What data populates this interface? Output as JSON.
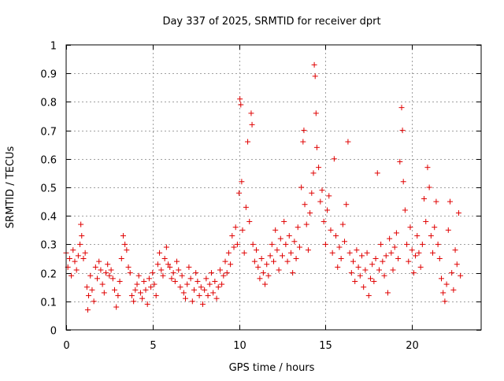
{
  "chart_data": {
    "type": "scatter",
    "title": "Day 337 of 2025, SRMTID for receiver dprt",
    "xlabel": "GPS time / hours",
    "ylabel": "SRMTID / TECUs",
    "xlim": [
      0,
      24
    ],
    "ylim": [
      0,
      1
    ],
    "xticks": [
      0,
      5,
      10,
      15,
      20
    ],
    "xtick_labels": [
      "0",
      "5",
      "10",
      "15",
      "20"
    ],
    "yticks": [
      0,
      0.1,
      0.2,
      0.3,
      0.4,
      0.5,
      0.6,
      0.7,
      0.8,
      0.9,
      1
    ],
    "ytick_labels": [
      "0",
      "0.1",
      "0.2",
      "0.3",
      "0.4",
      "0.5",
      "0.6",
      "0.7",
      "0.8",
      "0.9",
      "1"
    ],
    "grid": true,
    "marker": "+",
    "color": "#e00000",
    "series": [
      {
        "name": "SRMTID",
        "points": [
          [
            0.0,
            0.27
          ],
          [
            0.1,
            0.22
          ],
          [
            0.2,
            0.25
          ],
          [
            0.3,
            0.19
          ],
          [
            0.4,
            0.28
          ],
          [
            0.5,
            0.24
          ],
          [
            0.6,
            0.21
          ],
          [
            0.7,
            0.26
          ],
          [
            0.8,
            0.3
          ],
          [
            0.85,
            0.37
          ],
          [
            0.9,
            0.33
          ],
          [
            1.0,
            0.25
          ],
          [
            1.1,
            0.27
          ],
          [
            1.2,
            0.15
          ],
          [
            1.25,
            0.07
          ],
          [
            1.3,
            0.12
          ],
          [
            1.4,
            0.19
          ],
          [
            1.5,
            0.14
          ],
          [
            1.6,
            0.1
          ],
          [
            1.7,
            0.22
          ],
          [
            1.8,
            0.18
          ],
          [
            1.9,
            0.24
          ],
          [
            2.0,
            0.21
          ],
          [
            2.1,
            0.16
          ],
          [
            2.2,
            0.13
          ],
          [
            2.3,
            0.2
          ],
          [
            2.4,
            0.23
          ],
          [
            2.5,
            0.19
          ],
          [
            2.6,
            0.21
          ],
          [
            2.7,
            0.18
          ],
          [
            2.8,
            0.14
          ],
          [
            2.9,
            0.08
          ],
          [
            3.0,
            0.12
          ],
          [
            3.1,
            0.17
          ],
          [
            3.2,
            0.25
          ],
          [
            3.3,
            0.33
          ],
          [
            3.4,
            0.3
          ],
          [
            3.5,
            0.28
          ],
          [
            3.6,
            0.22
          ],
          [
            3.7,
            0.2
          ],
          [
            3.8,
            0.12
          ],
          [
            3.9,
            0.1
          ],
          [
            4.0,
            0.14
          ],
          [
            4.1,
            0.16
          ],
          [
            4.2,
            0.19
          ],
          [
            4.3,
            0.13
          ],
          [
            4.4,
            0.11
          ],
          [
            4.5,
            0.17
          ],
          [
            4.6,
            0.14
          ],
          [
            4.7,
            0.09
          ],
          [
            4.8,
            0.18
          ],
          [
            4.9,
            0.15
          ],
          [
            5.0,
            0.2
          ],
          [
            5.1,
            0.16
          ],
          [
            5.2,
            0.12
          ],
          [
            5.3,
            0.23
          ],
          [
            5.4,
            0.27
          ],
          [
            5.5,
            0.21
          ],
          [
            5.6,
            0.19
          ],
          [
            5.7,
            0.25
          ],
          [
            5.8,
            0.29
          ],
          [
            5.9,
            0.23
          ],
          [
            6.0,
            0.22
          ],
          [
            6.1,
            0.18
          ],
          [
            6.2,
            0.2
          ],
          [
            6.3,
            0.17
          ],
          [
            6.4,
            0.24
          ],
          [
            6.5,
            0.21
          ],
          [
            6.6,
            0.15
          ],
          [
            6.7,
            0.19
          ],
          [
            6.8,
            0.13
          ],
          [
            6.9,
            0.11
          ],
          [
            7.0,
            0.16
          ],
          [
            7.1,
            0.22
          ],
          [
            7.2,
            0.18
          ],
          [
            7.3,
            0.1
          ],
          [
            7.4,
            0.14
          ],
          [
            7.5,
            0.2
          ],
          [
            7.6,
            0.17
          ],
          [
            7.7,
            0.12
          ],
          [
            7.8,
            0.15
          ],
          [
            7.9,
            0.09
          ],
          [
            8.0,
            0.14
          ],
          [
            8.1,
            0.18
          ],
          [
            8.2,
            0.12
          ],
          [
            8.3,
            0.16
          ],
          [
            8.4,
            0.2
          ],
          [
            8.5,
            0.13
          ],
          [
            8.6,
            0.17
          ],
          [
            8.7,
            0.11
          ],
          [
            8.8,
            0.15
          ],
          [
            8.9,
            0.21
          ],
          [
            9.0,
            0.16
          ],
          [
            9.1,
            0.19
          ],
          [
            9.2,
            0.24
          ],
          [
            9.3,
            0.2
          ],
          [
            9.4,
            0.27
          ],
          [
            9.5,
            0.23
          ],
          [
            9.6,
            0.33
          ],
          [
            9.7,
            0.29
          ],
          [
            9.8,
            0.36
          ],
          [
            9.9,
            0.3
          ],
          [
            10.0,
            0.48
          ],
          [
            10.05,
            0.81
          ],
          [
            10.1,
            0.79
          ],
          [
            10.15,
            0.52
          ],
          [
            10.2,
            0.35
          ],
          [
            10.3,
            0.27
          ],
          [
            10.4,
            0.43
          ],
          [
            10.5,
            0.66
          ],
          [
            10.6,
            0.38
          ],
          [
            10.7,
            0.76
          ],
          [
            10.75,
            0.72
          ],
          [
            10.8,
            0.3
          ],
          [
            10.9,
            0.24
          ],
          [
            11.0,
            0.28
          ],
          [
            11.1,
            0.22
          ],
          [
            11.2,
            0.18
          ],
          [
            11.3,
            0.25
          ],
          [
            11.4,
            0.2
          ],
          [
            11.5,
            0.16
          ],
          [
            11.6,
            0.23
          ],
          [
            11.7,
            0.19
          ],
          [
            11.8,
            0.26
          ],
          [
            11.9,
            0.3
          ],
          [
            12.0,
            0.24
          ],
          [
            12.1,
            0.35
          ],
          [
            12.2,
            0.28
          ],
          [
            12.3,
            0.21
          ],
          [
            12.4,
            0.32
          ],
          [
            12.5,
            0.26
          ],
          [
            12.6,
            0.38
          ],
          [
            12.7,
            0.3
          ],
          [
            12.8,
            0.24
          ],
          [
            12.9,
            0.33
          ],
          [
            13.0,
            0.27
          ],
          [
            13.1,
            0.2
          ],
          [
            13.2,
            0.31
          ],
          [
            13.3,
            0.25
          ],
          [
            13.4,
            0.36
          ],
          [
            13.5,
            0.29
          ],
          [
            13.6,
            0.5
          ],
          [
            13.7,
            0.66
          ],
          [
            13.75,
            0.7
          ],
          [
            13.8,
            0.44
          ],
          [
            13.9,
            0.37
          ],
          [
            14.0,
            0.28
          ],
          [
            14.1,
            0.41
          ],
          [
            14.2,
            0.48
          ],
          [
            14.3,
            0.55
          ],
          [
            14.35,
            0.93
          ],
          [
            14.4,
            0.89
          ],
          [
            14.45,
            0.76
          ],
          [
            14.5,
            0.64
          ],
          [
            14.6,
            0.57
          ],
          [
            14.7,
            0.45
          ],
          [
            14.8,
            0.49
          ],
          [
            14.9,
            0.38
          ],
          [
            15.0,
            0.3
          ],
          [
            15.1,
            0.42
          ],
          [
            15.2,
            0.47
          ],
          [
            15.3,
            0.35
          ],
          [
            15.4,
            0.27
          ],
          [
            15.5,
            0.6
          ],
          [
            15.6,
            0.33
          ],
          [
            15.7,
            0.22
          ],
          [
            15.8,
            0.29
          ],
          [
            15.9,
            0.25
          ],
          [
            16.0,
            0.37
          ],
          [
            16.1,
            0.31
          ],
          [
            16.2,
            0.44
          ],
          [
            16.3,
            0.66
          ],
          [
            16.4,
            0.27
          ],
          [
            16.5,
            0.2
          ],
          [
            16.6,
            0.24
          ],
          [
            16.7,
            0.17
          ],
          [
            16.8,
            0.28
          ],
          [
            16.9,
            0.22
          ],
          [
            17.0,
            0.19
          ],
          [
            17.1,
            0.26
          ],
          [
            17.2,
            0.15
          ],
          [
            17.3,
            0.21
          ],
          [
            17.4,
            0.27
          ],
          [
            17.5,
            0.12
          ],
          [
            17.6,
            0.18
          ],
          [
            17.7,
            0.23
          ],
          [
            17.8,
            0.17
          ],
          [
            17.9,
            0.25
          ],
          [
            18.0,
            0.55
          ],
          [
            18.1,
            0.21
          ],
          [
            18.2,
            0.3
          ],
          [
            18.3,
            0.24
          ],
          [
            18.4,
            0.19
          ],
          [
            18.5,
            0.26
          ],
          [
            18.6,
            0.13
          ],
          [
            18.7,
            0.32
          ],
          [
            18.8,
            0.27
          ],
          [
            18.9,
            0.21
          ],
          [
            19.0,
            0.29
          ],
          [
            19.1,
            0.34
          ],
          [
            19.2,
            0.25
          ],
          [
            19.3,
            0.59
          ],
          [
            19.4,
            0.78
          ],
          [
            19.45,
            0.7
          ],
          [
            19.5,
            0.52
          ],
          [
            19.6,
            0.42
          ],
          [
            19.7,
            0.3
          ],
          [
            19.8,
            0.24
          ],
          [
            19.9,
            0.36
          ],
          [
            20.0,
            0.28
          ],
          [
            20.1,
            0.2
          ],
          [
            20.2,
            0.26
          ],
          [
            20.3,
            0.33
          ],
          [
            20.4,
            0.27
          ],
          [
            20.5,
            0.22
          ],
          [
            20.6,
            0.3
          ],
          [
            20.7,
            0.46
          ],
          [
            20.8,
            0.38
          ],
          [
            20.9,
            0.57
          ],
          [
            21.0,
            0.5
          ],
          [
            21.1,
            0.33
          ],
          [
            21.2,
            0.27
          ],
          [
            21.3,
            0.36
          ],
          [
            21.4,
            0.45
          ],
          [
            21.5,
            0.3
          ],
          [
            21.6,
            0.25
          ],
          [
            21.7,
            0.18
          ],
          [
            21.8,
            0.13
          ],
          [
            21.9,
            0.1
          ],
          [
            22.0,
            0.16
          ],
          [
            22.1,
            0.35
          ],
          [
            22.2,
            0.45
          ],
          [
            22.3,
            0.2
          ],
          [
            22.4,
            0.14
          ],
          [
            22.5,
            0.28
          ],
          [
            22.6,
            0.23
          ],
          [
            22.7,
            0.41
          ],
          [
            22.8,
            0.19
          ]
        ]
      }
    ]
  }
}
